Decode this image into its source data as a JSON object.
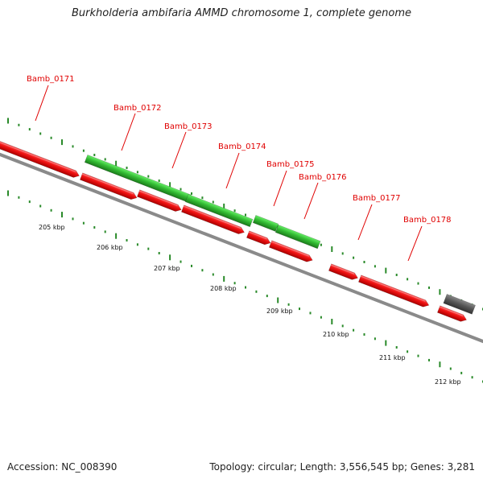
{
  "title": "Burkholderia ambifaria AMMD chromosome 1, complete genome",
  "footer": {
    "accession": "Accession: NC_008390",
    "topology": "Topology: circular; Length: 3,556,545 bp; Genes: 3,281"
  },
  "colors": {
    "forward_gene": "#33cc33",
    "reverse_gene": "#ee1111",
    "other_feature": "#555555",
    "label": "#e00000",
    "backbone": "#888888",
    "tick": "#2a8a2a"
  },
  "genes": [
    "Bamb_0171",
    "Bamb_0172",
    "Bamb_0173",
    "Bamb_0174",
    "Bamb_0175",
    "Bamb_0176",
    "Bamb_0177",
    "Bamb_0178"
  ],
  "scale_ticks": [
    "205 kbp",
    "206 kbp",
    "207 kbp",
    "208 kbp",
    "209 kbp",
    "210 kbp",
    "211 kbp",
    "212 kbp"
  ]
}
